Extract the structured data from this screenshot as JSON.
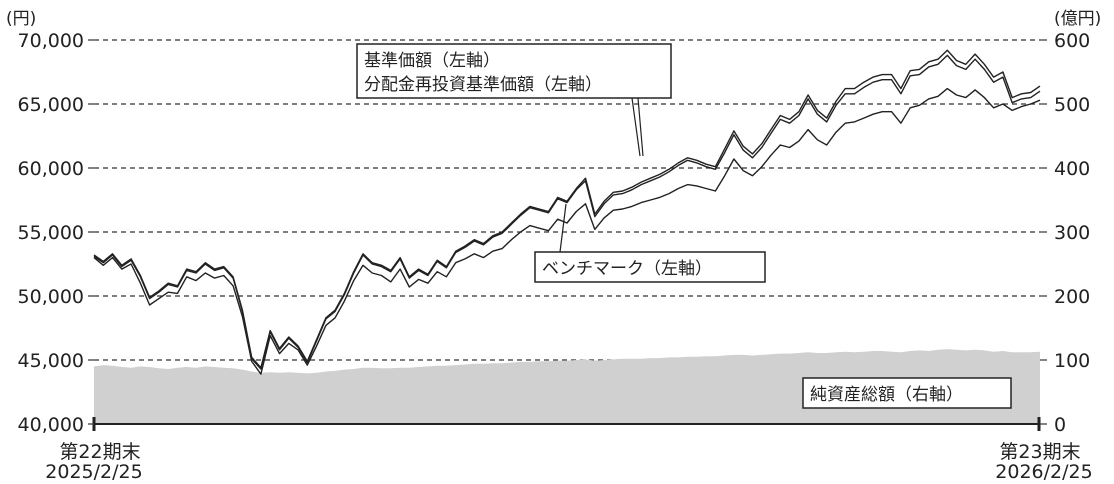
{
  "chart_data": {
    "type": "line",
    "left_unit": "(円)",
    "right_unit": "(億円)",
    "left_ylim": [
      40000,
      70000
    ],
    "right_ylim": [
      0,
      600
    ],
    "left_ticks": [
      "70,000",
      "65,000",
      "60,000",
      "55,000",
      "50,000",
      "45,000",
      "40,000"
    ],
    "left_tick_values": [
      70000,
      65000,
      60000,
      55000,
      50000,
      45000,
      40000
    ],
    "right_ticks": [
      "600",
      "500",
      "400",
      "300",
      "200",
      "100",
      "0"
    ],
    "right_tick_values": [
      600,
      500,
      400,
      300,
      200,
      100,
      0
    ],
    "x_labels": {
      "start_period": "第22期末",
      "start_date": "2025/2/25",
      "end_period": "第23期末",
      "end_date": "2026/2/25"
    },
    "grid": "horizontal-dashed",
    "annotations": {
      "nav_label": "基準価額（左軸）",
      "reinvested_label": "分配金再投資基準価額（左軸）",
      "benchmark_label": "ベンチマーク（左軸）",
      "net_assets_label": "純資産総額（右軸）"
    },
    "series": [
      {
        "name": "基準価額（左軸）",
        "axis": "left",
        "color": "#222222",
        "values": [
          53100,
          52600,
          53200,
          52300,
          52800,
          51500,
          49800,
          50300,
          50900,
          50700,
          52000,
          51800,
          52500,
          52000,
          52200,
          51400,
          48800,
          45100,
          44300,
          47200,
          45800,
          46700,
          46000,
          44800,
          46500,
          48200,
          48800,
          50100,
          51800,
          53200,
          52500,
          52300,
          51900,
          52900,
          51400,
          52000,
          51600,
          52700,
          52200,
          53400,
          53800,
          54300,
          54000,
          54600,
          54900,
          55600,
          56300,
          56900,
          56700,
          56500,
          57600,
          57300,
          58300,
          59000,
          56200,
          57200,
          57900,
          58000,
          58300,
          58700,
          59000,
          59300,
          59700,
          60200,
          60600,
          60400,
          60100,
          59900,
          61200,
          62600,
          61400,
          60800,
          61600,
          62700,
          63800,
          63500,
          64100,
          65400,
          64200,
          63600,
          64900,
          65800,
          65800,
          66300,
          66700,
          66900,
          66900,
          65800,
          67200,
          67300,
          67900,
          68100,
          68800,
          68000,
          67700,
          68500,
          67700,
          66700,
          67100,
          65100,
          65400,
          65500,
          66000
        ]
      },
      {
        "name": "分配金再投資基準価額（左軸）",
        "axis": "left",
        "color": "#222222",
        "values": [
          53200,
          52700,
          53300,
          52400,
          52900,
          51600,
          49900,
          50400,
          51000,
          50800,
          52100,
          51900,
          52600,
          52100,
          52300,
          51500,
          48900,
          45200,
          44400,
          47300,
          45900,
          46800,
          46100,
          44900,
          46600,
          48300,
          48900,
          50200,
          51900,
          53300,
          52600,
          52400,
          52000,
          53000,
          51500,
          52100,
          51700,
          52800,
          52300,
          53500,
          53900,
          54400,
          54100,
          54700,
          55000,
          55700,
          56400,
          57000,
          56800,
          56600,
          57700,
          57400,
          58400,
          59200,
          56400,
          57400,
          58100,
          58200,
          58500,
          58900,
          59200,
          59500,
          59900,
          60400,
          60800,
          60600,
          60300,
          60100,
          61500,
          62900,
          61700,
          61100,
          61900,
          63000,
          64100,
          63800,
          64400,
          65700,
          64500,
          63900,
          65200,
          66200,
          66200,
          66700,
          67100,
          67300,
          67300,
          66200,
          67600,
          67700,
          68300,
          68500,
          69200,
          68400,
          68100,
          68900,
          68100,
          67100,
          67500,
          65500,
          65800,
          65900,
          66400
        ]
      },
      {
        "name": "ベンチマーク（左軸）",
        "axis": "left",
        "color": "#222222",
        "values": [
          53000,
          52400,
          53000,
          52100,
          52500,
          51000,
          49300,
          49800,
          50300,
          50200,
          51500,
          51200,
          51800,
          51400,
          51600,
          50800,
          48400,
          44900,
          43900,
          46900,
          45500,
          46300,
          45800,
          44600,
          46100,
          47700,
          48300,
          49600,
          51200,
          52400,
          51800,
          51600,
          51100,
          52100,
          50700,
          51300,
          51000,
          51900,
          51500,
          52600,
          52900,
          53300,
          53000,
          53500,
          53700,
          54400,
          55000,
          55500,
          55300,
          55100,
          56000,
          55700,
          56600,
          57200,
          55200,
          56100,
          56700,
          56800,
          57000,
          57300,
          57500,
          57700,
          58000,
          58400,
          58700,
          58600,
          58400,
          58200,
          59400,
          60700,
          59800,
          59400,
          60100,
          61000,
          61800,
          61600,
          62100,
          63000,
          62200,
          61800,
          62800,
          63500,
          63600,
          63900,
          64200,
          64400,
          64400,
          63500,
          64700,
          64900,
          65400,
          65600,
          66200,
          65700,
          65500,
          66100,
          65500,
          64700,
          65000,
          64500,
          64800,
          65000,
          65300
        ]
      },
      {
        "name": "純資産総額（右軸）",
        "axis": "right",
        "type": "area",
        "color": "#d0d0d0",
        "values": [
          90,
          92,
          91,
          89,
          88,
          90,
          89,
          87,
          86,
          88,
          89,
          88,
          90,
          89,
          88,
          87,
          85,
          82,
          80,
          81,
          80,
          81,
          80,
          79,
          80,
          82,
          83,
          85,
          86,
          88,
          88,
          87,
          87,
          88,
          88,
          89,
          90,
          91,
          91,
          92,
          93,
          94,
          94,
          95,
          95,
          96,
          97,
          97,
          98,
          98,
          99,
          99,
          100,
          101,
          99,
          100,
          101,
          102,
          102,
          102,
          103,
          103,
          104,
          104,
          105,
          105,
          106,
          106,
          107,
          108,
          108,
          107,
          108,
          109,
          110,
          110,
          111,
          112,
          111,
          111,
          112,
          113,
          112,
          113,
          114,
          114,
          113,
          112,
          114,
          115,
          114,
          116,
          117,
          116,
          115,
          116,
          115,
          113,
          114,
          112,
          112,
          112,
          113
        ]
      }
    ]
  }
}
